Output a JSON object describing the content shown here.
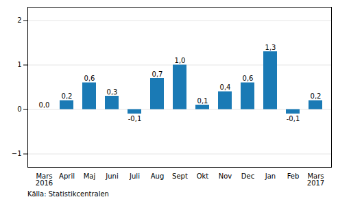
{
  "chart_data": {
    "type": "bar",
    "caption": "Källa: Statistikcentralen",
    "categories": [
      "Mars\n2016",
      "April",
      "Maj",
      "Juni",
      "Juli",
      "Aug",
      "Sept",
      "Okt",
      "Nov",
      "Dec",
      "Jan",
      "Feb",
      "Mars\n2017"
    ],
    "values": [
      0.0,
      0.2,
      0.6,
      0.3,
      -0.1,
      0.7,
      1.0,
      0.1,
      0.4,
      0.6,
      1.3,
      -0.1,
      0.2
    ],
    "value_labels": [
      "0,0",
      "0,2",
      "0,6",
      "0,3",
      "-0,1",
      "0,7",
      "1,0",
      "0,1",
      "0,4",
      "0,6",
      "1,3",
      "-0,1",
      "0,2"
    ],
    "color": "#1a7ab5",
    "ylim": [
      -1.3,
      2.3
    ],
    "yticks": [
      -1,
      0,
      1,
      2
    ],
    "grid": true,
    "data_labels": true
  }
}
